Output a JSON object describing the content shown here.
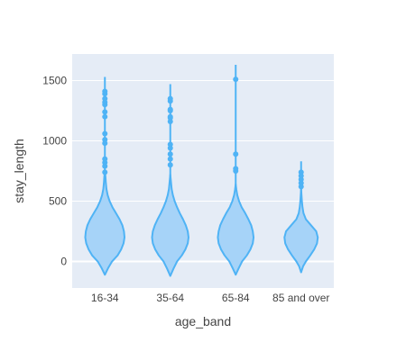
{
  "chart_data": {
    "type": "violin",
    "xlabel": "age_band",
    "ylabel": "stay_length",
    "ylim": [
      -220,
      1720
    ],
    "y_ticks": [
      0,
      500,
      1000,
      1500
    ],
    "y_tick_labels": [
      "0",
      "500",
      "1000",
      "1500"
    ],
    "grid": true,
    "legend": "none",
    "color": "#4fb3f5",
    "fill_color": "#a6d3f8",
    "plot_bg": "#e5ecf6",
    "categories": [
      "16-34",
      "35-64",
      "65-84",
      "85 and over"
    ],
    "violins": [
      {
        "category": "16-34",
        "min": -110,
        "max": 1530,
        "profile": [
          [
            -110,
            0.0
          ],
          [
            -50,
            0.18
          ],
          [
            0,
            0.36
          ],
          [
            50,
            0.64
          ],
          [
            100,
            0.82
          ],
          [
            150,
            0.94
          ],
          [
            200,
            0.99
          ],
          [
            250,
            0.96
          ],
          [
            300,
            0.88
          ],
          [
            350,
            0.74
          ],
          [
            400,
            0.56
          ],
          [
            450,
            0.38
          ],
          [
            500,
            0.24
          ],
          [
            550,
            0.14
          ],
          [
            600,
            0.08
          ],
          [
            650,
            0.05
          ],
          [
            700,
            0.03
          ],
          [
            760,
            0.0
          ]
        ],
        "outliers": [
          740,
          790,
          820,
          850,
          980,
          1010,
          1060,
          1200,
          1240,
          1300,
          1320,
          1350,
          1390,
          1410
        ]
      },
      {
        "category": "35-64",
        "min": -120,
        "max": 1470,
        "profile": [
          [
            -120,
            0.0
          ],
          [
            -60,
            0.16
          ],
          [
            0,
            0.34
          ],
          [
            50,
            0.58
          ],
          [
            100,
            0.76
          ],
          [
            150,
            0.88
          ],
          [
            200,
            0.92
          ],
          [
            250,
            0.88
          ],
          [
            300,
            0.78
          ],
          [
            350,
            0.64
          ],
          [
            400,
            0.48
          ],
          [
            450,
            0.34
          ],
          [
            500,
            0.22
          ],
          [
            550,
            0.13
          ],
          [
            600,
            0.07
          ],
          [
            650,
            0.04
          ],
          [
            720,
            0.0
          ]
        ],
        "outliers": [
          800,
          850,
          890,
          940,
          970,
          1160,
          1190,
          1200,
          1250,
          1260,
          1330,
          1350
        ]
      },
      {
        "category": "65-84",
        "min": -110,
        "max": 1630,
        "profile": [
          [
            -110,
            0.0
          ],
          [
            -60,
            0.14
          ],
          [
            0,
            0.32
          ],
          [
            50,
            0.56
          ],
          [
            100,
            0.74
          ],
          [
            150,
            0.86
          ],
          [
            200,
            0.9
          ],
          [
            250,
            0.86
          ],
          [
            300,
            0.78
          ],
          [
            350,
            0.64
          ],
          [
            400,
            0.48
          ],
          [
            450,
            0.3
          ],
          [
            500,
            0.17
          ],
          [
            550,
            0.08
          ],
          [
            600,
            0.03
          ],
          [
            640,
            0.0
          ]
        ],
        "outliers": [
          750,
          770,
          890,
          1510
        ]
      },
      {
        "category": "85 and over",
        "min": -90,
        "max": 830,
        "profile": [
          [
            -90,
            0.0
          ],
          [
            -40,
            0.1
          ],
          [
            0,
            0.24
          ],
          [
            50,
            0.46
          ],
          [
            100,
            0.66
          ],
          [
            150,
            0.8
          ],
          [
            200,
            0.84
          ],
          [
            250,
            0.76
          ],
          [
            300,
            0.5
          ],
          [
            350,
            0.24
          ],
          [
            400,
            0.12
          ],
          [
            450,
            0.07
          ],
          [
            500,
            0.04
          ],
          [
            550,
            0.02
          ],
          [
            600,
            0.0
          ]
        ],
        "outliers": [
          620,
          650,
          680,
          710,
          740
        ]
      }
    ]
  }
}
